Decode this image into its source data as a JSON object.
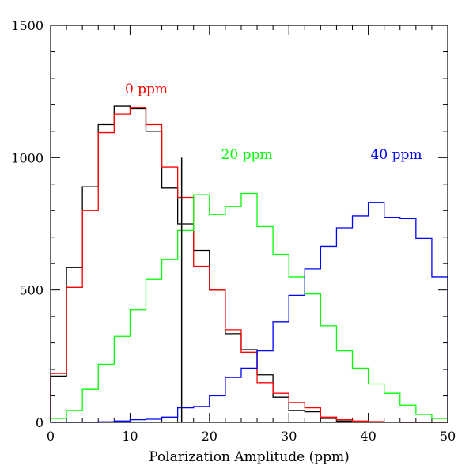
{
  "chart_data": {
    "type": "histogram",
    "title": "",
    "xlabel": "Polarization Amplitude (ppm)",
    "ylabel": "",
    "xlim": [
      0,
      50
    ],
    "ylim": [
      0,
      1500
    ],
    "x_ticks": [
      0,
      10,
      20,
      30,
      40,
      50
    ],
    "y_ticks": [
      0,
      500,
      1000,
      1500
    ],
    "bin_edges": [
      0,
      2,
      4,
      6,
      8,
      10,
      12,
      14,
      16,
      18,
      20,
      22,
      24,
      26,
      28,
      30,
      32,
      34,
      36,
      38,
      40,
      42,
      44,
      46,
      48,
      50
    ],
    "grid": false,
    "series": [
      {
        "id": "black",
        "name": "",
        "color": "#000000",
        "values": [
          175,
          585,
          890,
          1125,
          1195,
          1185,
          1100,
          885,
          750,
          650,
          500,
          335,
          275,
          180,
          95,
          45,
          40,
          15,
          5,
          3,
          2,
          1,
          0,
          0,
          0
        ]
      },
      {
        "id": "red",
        "name": "0 ppm",
        "color": "#ff0000",
        "values": [
          185,
          510,
          800,
          1095,
          1165,
          1190,
          1125,
          965,
          850,
          590,
          500,
          350,
          265,
          150,
          110,
          75,
          55,
          20,
          10,
          5,
          3,
          1,
          0,
          0,
          0
        ]
      },
      {
        "id": "green",
        "name": "20 ppm",
        "color": "#00ff00",
        "values": [
          15,
          45,
          125,
          220,
          325,
          425,
          540,
          615,
          725,
          860,
          785,
          815,
          865,
          740,
          635,
          550,
          485,
          365,
          270,
          205,
          145,
          110,
          65,
          30,
          15
        ]
      },
      {
        "id": "blue",
        "name": "40 ppm",
        "color": "#0000ff",
        "values": [
          0,
          0,
          0,
          2,
          5,
          10,
          12,
          20,
          55,
          60,
          100,
          170,
          205,
          270,
          380,
          480,
          580,
          665,
          735,
          780,
          830,
          775,
          770,
          695,
          550
        ]
      }
    ],
    "vertical_line": {
      "x": 16.5,
      "y_top": 1000,
      "color": "#000000"
    }
  }
}
